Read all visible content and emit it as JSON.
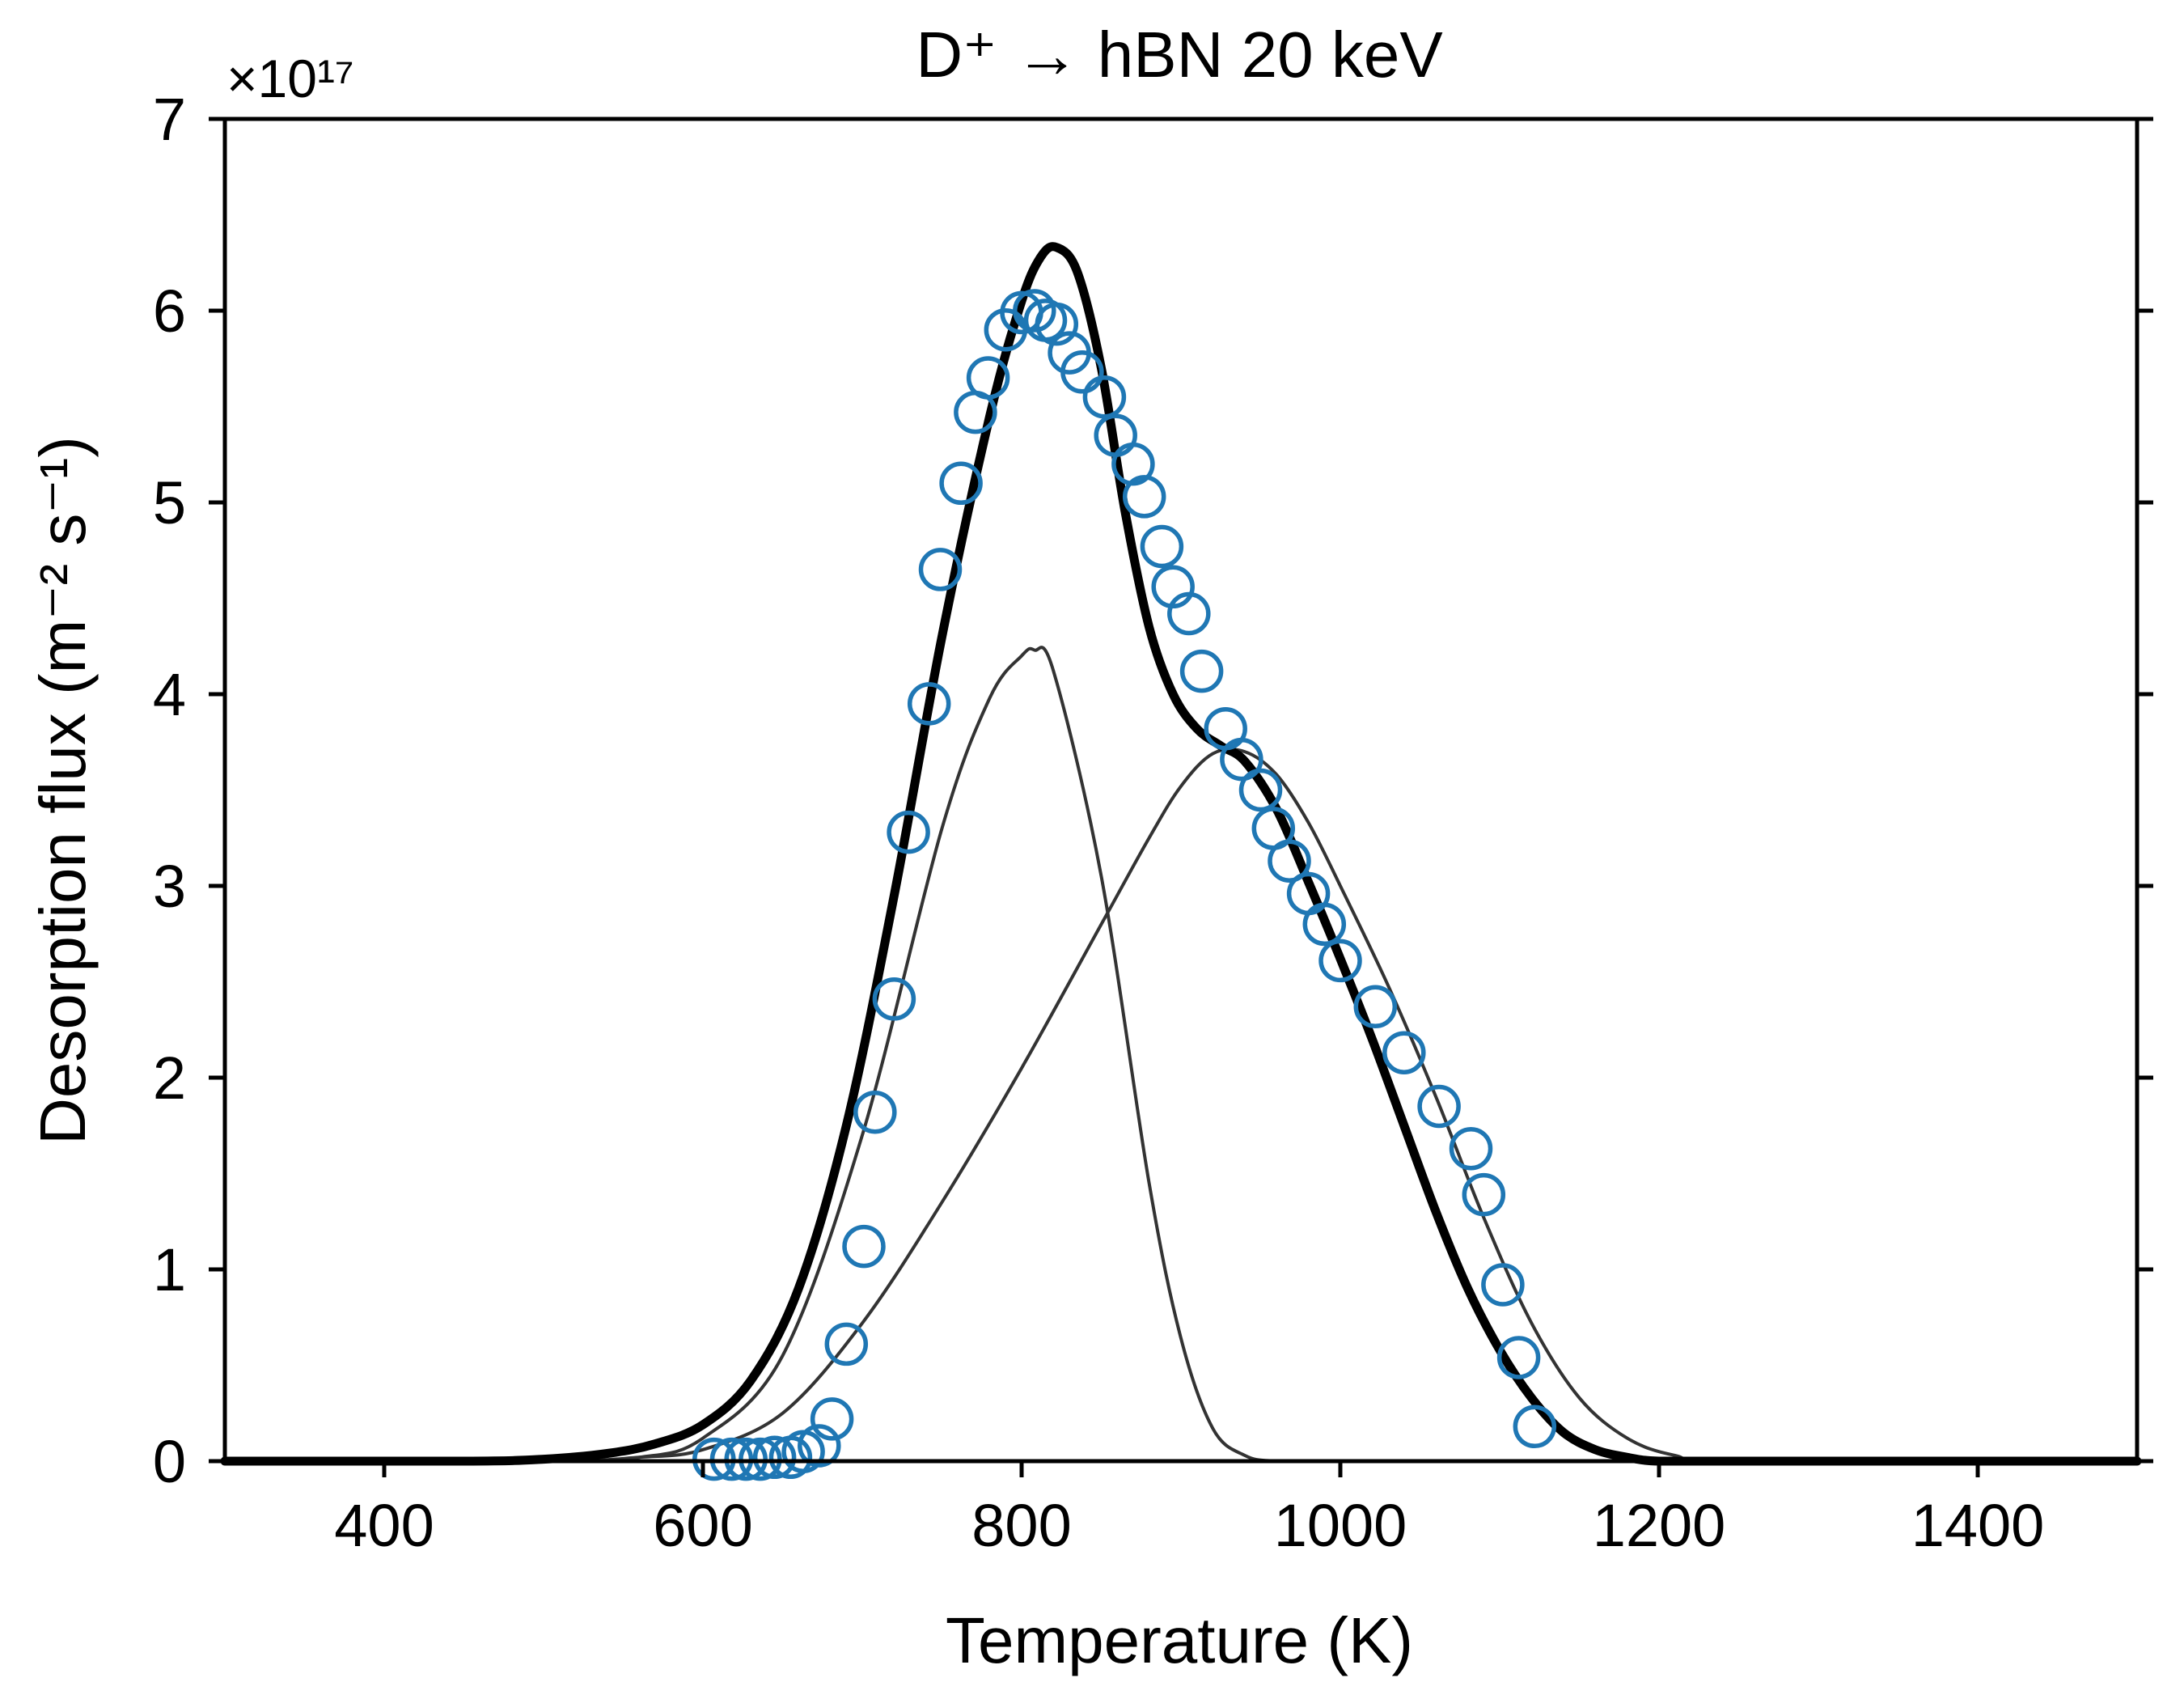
{
  "chart_data": {
    "type": "scatter",
    "title": "D⁺ → hBN 20 keV",
    "xlabel": "Temperature (K)",
    "ylabel": "Desorption flux (m⁻² s⁻¹)",
    "y_offset_label": "×10¹⁷",
    "y_scale": 1e+17,
    "xlim": [
      300,
      1500
    ],
    "ylim": [
      0,
      7
    ],
    "xticks": [
      400,
      600,
      800,
      1000,
      1200,
      1400
    ],
    "yticks": [
      0,
      1,
      2,
      3,
      4,
      5,
      6,
      7
    ],
    "grid": false,
    "series": [
      {
        "kind": "markers",
        "color": "#1f77b4",
        "x": [
          607,
          618,
          627,
          636,
          645,
          655,
          663,
          673,
          681,
          690,
          701,
          708,
          720,
          729,
          742,
          749,
          762,
          771,
          779,
          790,
          800,
          808,
          815,
          822,
          830,
          838,
          852,
          859,
          870,
          877,
          888,
          895,
          905,
          913,
          928,
          938,
          950,
          958,
          968,
          980,
          990,
          1000,
          1022,
          1040,
          1062,
          1082,
          1090,
          1102,
          1112,
          1122
        ],
        "y": [
          0.01,
          0.01,
          0.01,
          0.01,
          0.02,
          0.02,
          0.05,
          0.08,
          0.22,
          0.61,
          1.12,
          1.82,
          2.41,
          3.28,
          3.95,
          4.65,
          5.1,
          5.47,
          5.65,
          5.9,
          5.99,
          6.0,
          5.95,
          5.93,
          5.78,
          5.68,
          5.55,
          5.35,
          5.2,
          5.03,
          4.77,
          4.56,
          4.42,
          4.12,
          3.82,
          3.66,
          3.5,
          3.3,
          3.13,
          2.96,
          2.8,
          2.61,
          2.37,
          2.13,
          1.85,
          1.63,
          1.39,
          0.92,
          0.54,
          0.18
        ]
      },
      {
        "kind": "component",
        "color": "#333333",
        "x": [
          300,
          500,
          560,
          600,
          650,
          700,
          750,
          780,
          800,
          808,
          820,
          850,
          880,
          900,
          920,
          940,
          960,
          1000,
          1500
        ],
        "y": [
          0,
          0,
          0.02,
          0.12,
          0.55,
          1.7,
          3.3,
          3.98,
          4.2,
          4.23,
          4.12,
          3.05,
          1.45,
          0.64,
          0.17,
          0.03,
          0,
          0,
          0
        ]
      },
      {
        "kind": "component",
        "color": "#333333",
        "x": [
          300,
          500,
          560,
          600,
          650,
          700,
          750,
          800,
          850,
          880,
          900,
          920,
          940,
          960,
          980,
          1000,
          1030,
          1060,
          1090,
          1120,
          1150,
          1180,
          1210,
          1250,
          1500
        ],
        "y": [
          0,
          0,
          0.02,
          0.06,
          0.25,
          0.72,
          1.35,
          2.05,
          2.8,
          3.25,
          3.52,
          3.69,
          3.7,
          3.58,
          3.33,
          3.0,
          2.48,
          1.9,
          1.27,
          0.72,
          0.33,
          0.12,
          0.03,
          0.0,
          0
        ]
      },
      {
        "kind": "fit",
        "color": "#000000",
        "x": [
          300,
          450,
          500,
          540,
          570,
          600,
          630,
          660,
          690,
          720,
          750,
          780,
          800,
          812,
          822,
          835,
          850,
          865,
          880,
          895,
          910,
          925,
          940,
          960,
          980,
          1000,
          1020,
          1040,
          1060,
          1080,
          1100,
          1120,
          1140,
          1160,
          1180,
          1200,
          1250,
          1500
        ],
        "y": [
          0,
          0,
          0.01,
          0.04,
          0.09,
          0.19,
          0.42,
          0.9,
          1.75,
          2.95,
          4.3,
          5.45,
          6.05,
          6.28,
          6.33,
          6.2,
          5.7,
          4.95,
          4.35,
          4.0,
          3.82,
          3.73,
          3.65,
          3.4,
          3.02,
          2.62,
          2.2,
          1.75,
          1.3,
          0.9,
          0.58,
          0.33,
          0.15,
          0.06,
          0.02,
          0.0,
          0,
          0
        ]
      }
    ]
  }
}
